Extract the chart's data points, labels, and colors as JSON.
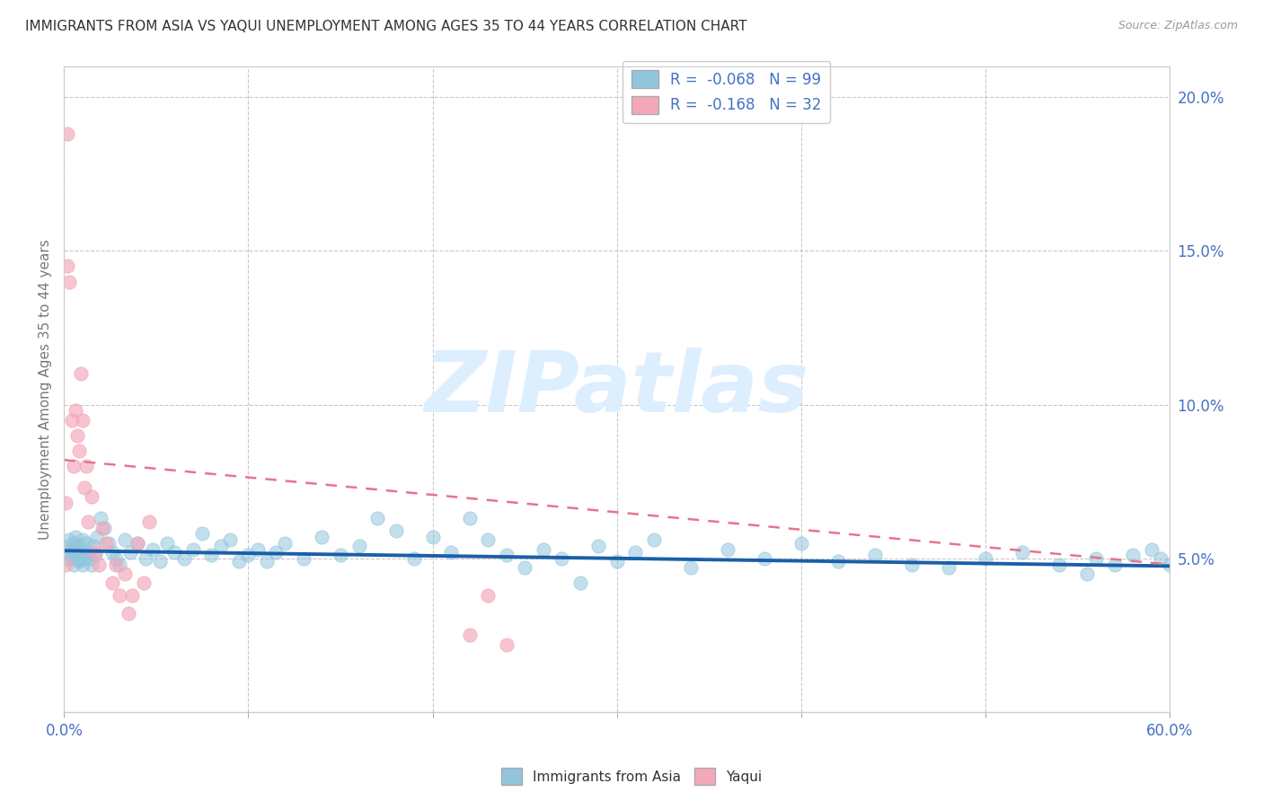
{
  "title": "IMMIGRANTS FROM ASIA VS YAQUI UNEMPLOYMENT AMONG AGES 35 TO 44 YEARS CORRELATION CHART",
  "source": "Source: ZipAtlas.com",
  "ylabel": "Unemployment Among Ages 35 to 44 years",
  "xlim": [
    0.0,
    0.6
  ],
  "ylim": [
    0.0,
    0.21
  ],
  "xtick_vals": [
    0.0,
    0.1,
    0.2,
    0.3,
    0.4,
    0.5,
    0.6
  ],
  "xtick_labels": [
    "0.0%",
    "",
    "",
    "",
    "",
    "",
    "60.0%"
  ],
  "ytick_vals": [
    0.0,
    0.05,
    0.1,
    0.15,
    0.2
  ],
  "ytick_labels_left": [
    "",
    "",
    "",
    "",
    ""
  ],
  "ytick_labels_right": [
    "",
    "5.0%",
    "10.0%",
    "15.0%",
    "20.0%"
  ],
  "blue_color": "#92c5de",
  "pink_color": "#f4a7b9",
  "blue_line_color": "#1a5fa8",
  "pink_line_color": "#e8748a",
  "background_color": "#ffffff",
  "grid_color": "#bbbbbb",
  "title_color": "#333333",
  "axis_label_color": "#777777",
  "tick_color_right": "#4472c4",
  "tick_color_x": "#4472c4",
  "watermark_color": "#ddeeff",
  "asia_x": [
    0.002,
    0.002,
    0.003,
    0.003,
    0.004,
    0.004,
    0.005,
    0.005,
    0.006,
    0.006,
    0.007,
    0.007,
    0.008,
    0.008,
    0.009,
    0.009,
    0.01,
    0.01,
    0.011,
    0.012,
    0.013,
    0.014,
    0.015,
    0.016,
    0.017,
    0.018,
    0.02,
    0.022,
    0.024,
    0.026,
    0.028,
    0.03,
    0.033,
    0.036,
    0.04,
    0.044,
    0.048,
    0.052,
    0.056,
    0.06,
    0.065,
    0.07,
    0.075,
    0.08,
    0.085,
    0.09,
    0.095,
    0.1,
    0.105,
    0.11,
    0.115,
    0.12,
    0.13,
    0.14,
    0.15,
    0.16,
    0.17,
    0.18,
    0.19,
    0.2,
    0.21,
    0.22,
    0.23,
    0.24,
    0.25,
    0.26,
    0.27,
    0.28,
    0.29,
    0.3,
    0.31,
    0.32,
    0.34,
    0.36,
    0.38,
    0.4,
    0.42,
    0.44,
    0.46,
    0.48,
    0.5,
    0.52,
    0.54,
    0.555,
    0.56,
    0.57,
    0.58,
    0.59,
    0.595,
    0.6,
    0.605,
    0.61,
    0.615,
    0.62,
    0.625,
    0.63,
    0.635,
    0.64,
    0.65
  ],
  "asia_y": [
    0.05,
    0.054,
    0.052,
    0.056,
    0.05,
    0.053,
    0.055,
    0.048,
    0.057,
    0.051,
    0.053,
    0.05,
    0.049,
    0.054,
    0.052,
    0.05,
    0.048,
    0.056,
    0.05,
    0.055,
    0.052,
    0.05,
    0.048,
    0.054,
    0.051,
    0.057,
    0.063,
    0.06,
    0.055,
    0.052,
    0.05,
    0.048,
    0.056,
    0.052,
    0.055,
    0.05,
    0.053,
    0.049,
    0.055,
    0.052,
    0.05,
    0.053,
    0.058,
    0.051,
    0.054,
    0.056,
    0.049,
    0.051,
    0.053,
    0.049,
    0.052,
    0.055,
    0.05,
    0.057,
    0.051,
    0.054,
    0.063,
    0.059,
    0.05,
    0.057,
    0.052,
    0.063,
    0.056,
    0.051,
    0.047,
    0.053,
    0.05,
    0.042,
    0.054,
    0.049,
    0.052,
    0.056,
    0.047,
    0.053,
    0.05,
    0.055,
    0.049,
    0.051,
    0.048,
    0.047,
    0.05,
    0.052,
    0.048,
    0.045,
    0.05,
    0.048,
    0.051,
    0.053,
    0.05,
    0.048,
    0.046,
    0.049,
    0.047,
    0.05,
    0.048,
    0.045,
    0.05,
    0.047,
    0.05
  ],
  "yaqui_x": [
    0.001,
    0.001,
    0.002,
    0.002,
    0.003,
    0.004,
    0.005,
    0.006,
    0.007,
    0.008,
    0.009,
    0.01,
    0.011,
    0.012,
    0.013,
    0.015,
    0.017,
    0.019,
    0.021,
    0.023,
    0.026,
    0.028,
    0.03,
    0.033,
    0.035,
    0.037,
    0.04,
    0.043,
    0.046,
    0.22,
    0.23,
    0.24
  ],
  "yaqui_y": [
    0.068,
    0.048,
    0.188,
    0.145,
    0.14,
    0.095,
    0.08,
    0.098,
    0.09,
    0.085,
    0.11,
    0.095,
    0.073,
    0.08,
    0.062,
    0.07,
    0.052,
    0.048,
    0.06,
    0.055,
    0.042,
    0.048,
    0.038,
    0.045,
    0.032,
    0.038,
    0.055,
    0.042,
    0.062,
    0.025,
    0.038,
    0.022
  ],
  "asia_trend_x": [
    0.0,
    0.6
  ],
  "asia_trend_y": [
    0.0525,
    0.0475
  ],
  "yaqui_trend_x": [
    0.0,
    0.6
  ],
  "yaqui_trend_y": [
    0.082,
    0.048
  ]
}
